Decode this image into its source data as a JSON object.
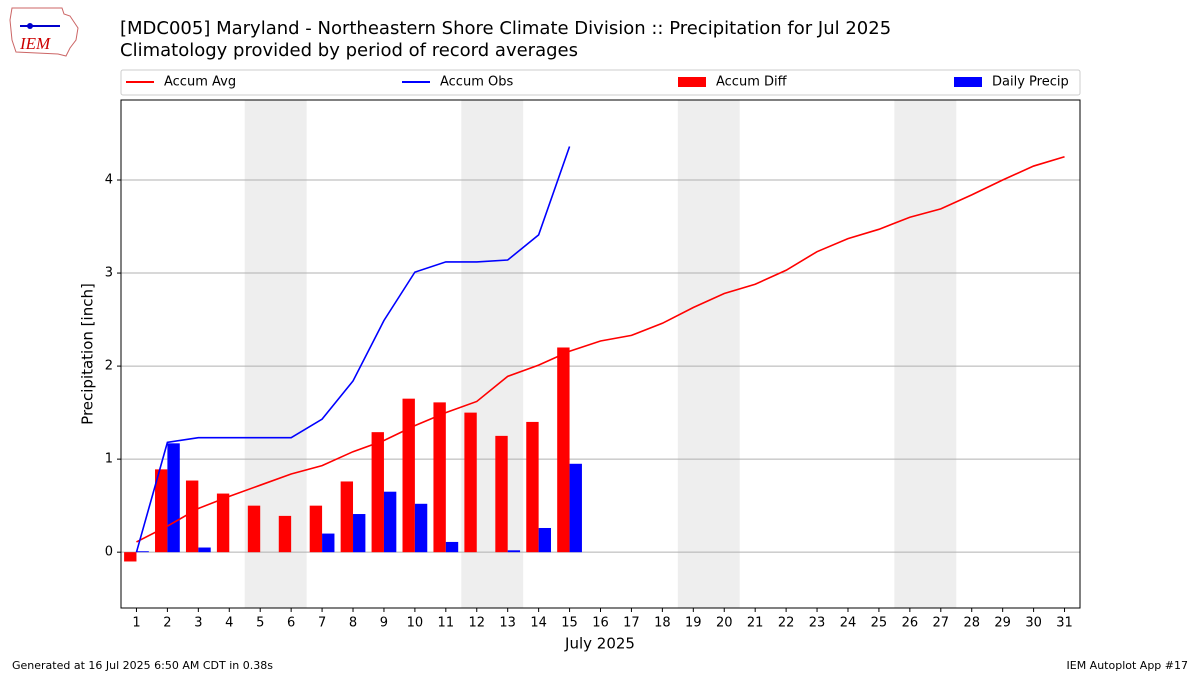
{
  "logo_text": "IEM",
  "footer_left": "Generated at 16 Jul 2025 6:50 AM CDT in 0.38s",
  "footer_right": "IEM Autoplot App #17",
  "chart_data": {
    "type": "bar",
    "title": "[MDC005] Maryland - Northeastern Shore Climate Division :: Precipitation for Jul 2025",
    "subtitle": "Climatology provided by period of record averages",
    "xlabel": "July 2025",
    "ylabel": "Precipitation [inch]",
    "x": [
      1,
      2,
      3,
      4,
      5,
      6,
      7,
      8,
      9,
      10,
      11,
      12,
      13,
      14,
      15,
      16,
      17,
      18,
      19,
      20,
      21,
      22,
      23,
      24,
      25,
      26,
      27,
      28,
      29,
      30,
      31
    ],
    "xlim": [
      0.5,
      31.5
    ],
    "xticks": [
      1,
      2,
      3,
      4,
      5,
      6,
      7,
      8,
      9,
      10,
      11,
      12,
      13,
      14,
      15,
      16,
      17,
      18,
      19,
      20,
      21,
      22,
      23,
      24,
      25,
      26,
      27,
      28,
      29,
      30,
      31
    ],
    "ylim": [
      -0.6,
      4.86
    ],
    "yticks": [
      0,
      1,
      2,
      3,
      4
    ],
    "grid": true,
    "shaded_spans": [
      [
        4.5,
        6.5
      ],
      [
        11.5,
        13.5
      ],
      [
        18.5,
        20.5
      ],
      [
        25.5,
        27.5
      ]
    ],
    "shade_color": "#eeeeee",
    "series": [
      {
        "name": "Accum Avg",
        "type": "line",
        "color": "#ff0000",
        "values": [
          0.11,
          0.28,
          0.47,
          0.6,
          0.72,
          0.84,
          0.93,
          1.08,
          1.2,
          1.36,
          1.5,
          1.62,
          1.89,
          2.01,
          2.16,
          2.27,
          2.33,
          2.46,
          2.63,
          2.78,
          2.88,
          3.03,
          3.23,
          3.37,
          3.47,
          3.6,
          3.69,
          3.84,
          4.0,
          4.15,
          4.25
        ]
      },
      {
        "name": "Accum Obs",
        "type": "line",
        "color": "#0000ff",
        "values": [
          0.0,
          1.18,
          1.23,
          1.23,
          1.23,
          1.23,
          1.43,
          1.84,
          2.49,
          3.01,
          3.12,
          3.12,
          3.14,
          3.41,
          4.36,
          null,
          null,
          null,
          null,
          null,
          null,
          null,
          null,
          null,
          null,
          null,
          null,
          null,
          null,
          null,
          null
        ]
      },
      {
        "name": "Accum Diff",
        "type": "bar",
        "color": "#ff0000",
        "values": [
          -0.1,
          0.89,
          0.77,
          0.63,
          0.5,
          0.39,
          0.5,
          0.76,
          1.29,
          1.65,
          1.61,
          1.5,
          1.25,
          1.4,
          2.2,
          null,
          null,
          null,
          null,
          null,
          null,
          null,
          null,
          null,
          null,
          null,
          null,
          null,
          null,
          null,
          null
        ]
      },
      {
        "name": "Daily Precip",
        "type": "bar",
        "color": "#0000ff",
        "values": [
          0.01,
          1.17,
          0.05,
          0,
          0,
          0,
          0.2,
          0.41,
          0.65,
          0.52,
          0.11,
          0,
          0.02,
          0.26,
          0.95,
          null,
          null,
          null,
          null,
          null,
          null,
          null,
          null,
          null,
          null,
          null,
          null,
          null,
          null,
          null,
          null
        ]
      }
    ]
  }
}
